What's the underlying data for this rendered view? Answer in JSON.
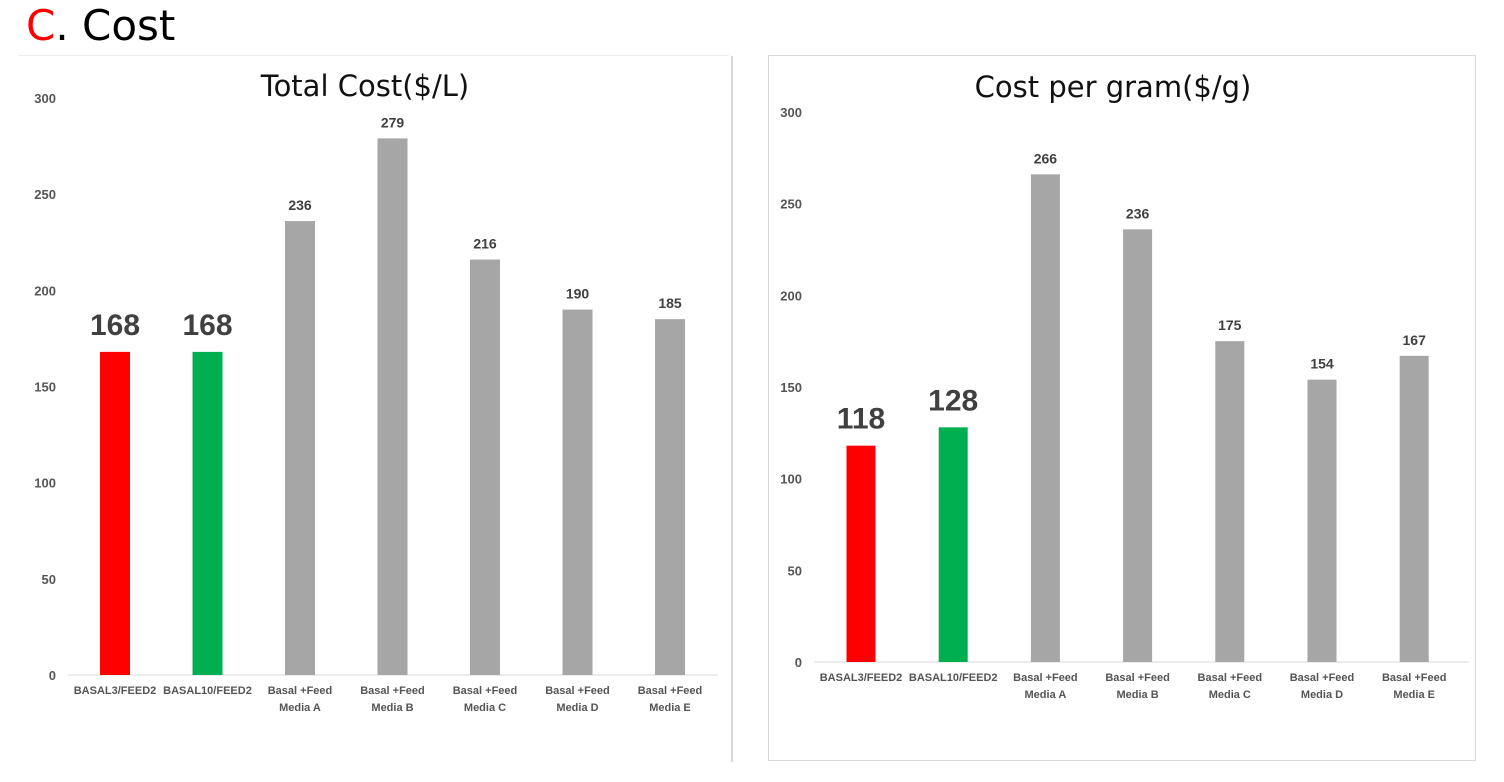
{
  "heading": {
    "letter": "C",
    "text": ". Cost"
  },
  "chart_data": [
    {
      "type": "bar",
      "title": "Total Cost($/L)",
      "xlabel": "",
      "ylabel": "",
      "ylim": [
        0,
        300
      ],
      "yticks": [
        "0",
        "50",
        "100",
        "150",
        "200",
        "250",
        "300"
      ],
      "grid": false,
      "categories": [
        [
          "BASAL3/FEED2"
        ],
        [
          "BASAL10/FEED2"
        ],
        [
          "Basal +Feed",
          "Media A"
        ],
        [
          "Basal +Feed",
          "Media B"
        ],
        [
          "Basal +Feed",
          "Media C"
        ],
        [
          "Basal +Feed",
          "Media D"
        ],
        [
          "Basal +Feed",
          "Media E"
        ]
      ],
      "values": [
        168,
        168,
        236,
        279,
        216,
        190,
        185
      ],
      "data_labels": [
        "168",
        "168",
        "236",
        "279",
        "216",
        "190",
        "185"
      ],
      "bar_colors": [
        "#ff0000",
        "#00b050",
        "#a6a6a6",
        "#a6a6a6",
        "#a6a6a6",
        "#a6a6a6",
        "#a6a6a6"
      ],
      "emphasized": [
        true,
        true,
        false,
        false,
        false,
        false,
        false
      ]
    },
    {
      "type": "bar",
      "title": "Cost per gram($/g)",
      "xlabel": "",
      "ylabel": "",
      "ylim": [
        0,
        300
      ],
      "yticks": [
        "0",
        "50",
        "100",
        "150",
        "200",
        "250",
        "300"
      ],
      "grid": false,
      "categories": [
        [
          "BASAL3/FEED2"
        ],
        [
          "BASAL10/FEED2"
        ],
        [
          "Basal +Feed",
          "Media A"
        ],
        [
          "Basal +Feed",
          "Media B"
        ],
        [
          "Basal +Feed",
          "Media C"
        ],
        [
          "Basal +Feed",
          "Media D"
        ],
        [
          "Basal +Feed",
          "Media E"
        ]
      ],
      "values": [
        118,
        128,
        266,
        236,
        175,
        154,
        167
      ],
      "data_labels": [
        "118",
        "128",
        "266",
        "236",
        "175",
        "154",
        "167"
      ],
      "bar_colors": [
        "#ff0000",
        "#00b050",
        "#a6a6a6",
        "#a6a6a6",
        "#a6a6a6",
        "#a6a6a6",
        "#a6a6a6"
      ],
      "emphasized": [
        true,
        true,
        false,
        false,
        false,
        false,
        false
      ]
    }
  ]
}
